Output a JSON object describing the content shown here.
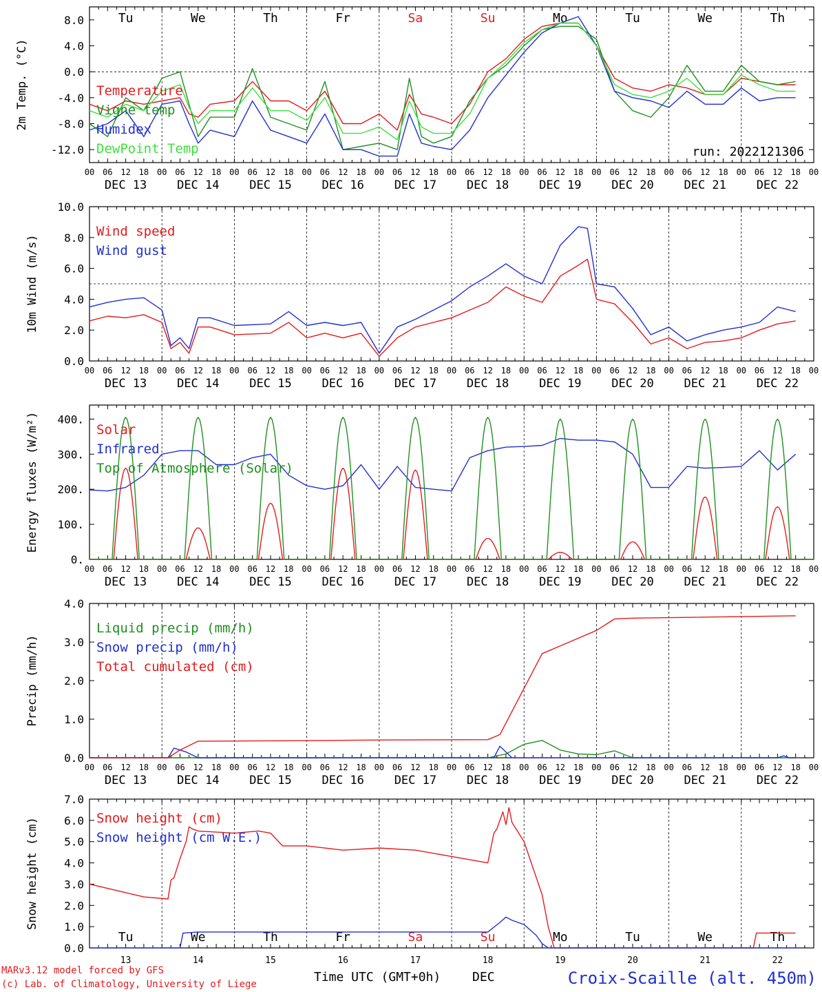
{
  "colors": {
    "red": "#e41a1c",
    "green": "#1f8f1f",
    "blue": "#1f2fd0",
    "light_green": "#3ee03e",
    "frame": "#000000",
    "footer_red": "#e41a1c",
    "footer_blue": "#1f2fd0"
  },
  "days": {
    "abbr": [
      "Tu",
      "We",
      "Th",
      "Fr",
      "Sa",
      "Su",
      "Mo",
      "Tu",
      "We",
      "Th"
    ],
    "abbr_colors": [
      "black",
      "black",
      "black",
      "black",
      "red",
      "red",
      "black",
      "black",
      "black",
      "black"
    ],
    "dates": [
      "DEC 13",
      "DEC 14",
      "DEC 15",
      "DEC 16",
      "DEC 17",
      "DEC 18",
      "DEC 19",
      "DEC 20",
      "DEC 21",
      "DEC 22"
    ],
    "hour_ticks": [
      "00",
      "06",
      "12",
      "18"
    ],
    "last_tick": "00",
    "day_numbers": [
      "13",
      "14",
      "15",
      "16",
      "17",
      "18",
      "19",
      "20",
      "21",
      "22"
    ]
  },
  "footer": {
    "model": "MARv3.12 model forced by GFS",
    "copyright": "(c) Lab. of Climatology, University of Liege",
    "xlabel_time": "Time UTC (GMT+0h)",
    "xlabel_month": "DEC",
    "station": "Croix-Scaille (alt. 450m)"
  },
  "chart_data": [
    {
      "type": "line",
      "ylabel": "2m Temp. (°C)",
      "ylim": [
        -14,
        10
      ],
      "yticks": [
        "8.0",
        "4.0",
        "0.0",
        "-4.0",
        "-8.0",
        "-12.0"
      ],
      "ytick_values": [
        8,
        4,
        0,
        -4,
        -8,
        -12
      ],
      "reference_line": 0,
      "annotation": "run: 2022121306",
      "x_unit": "hours since DEC 13 00 UTC",
      "series": [
        {
          "name": "Temperature",
          "color": "red",
          "x": [
            0,
            6,
            12,
            18,
            24,
            30,
            33,
            36,
            40,
            48,
            54,
            60,
            66,
            72,
            78,
            84,
            90,
            96,
            102,
            106,
            110,
            114,
            120,
            126,
            132,
            138,
            144,
            150,
            156,
            162,
            168,
            174,
            180,
            186,
            192,
            198,
            204,
            210,
            216,
            222,
            228,
            234
          ],
          "y": [
            -5,
            -6,
            -4.5,
            -5,
            -4.5,
            -4,
            -6.5,
            -7,
            -5,
            -4.5,
            -1.5,
            -4.5,
            -4.5,
            -6,
            -3,
            -8,
            -8,
            -6.5,
            -9,
            -3.5,
            -6.5,
            -7,
            -8,
            -5,
            0,
            2,
            5,
            7,
            7.5,
            7.5,
            4,
            -1,
            -2.5,
            -3,
            -2,
            -2.5,
            -3.5,
            -3.5,
            -1,
            -1.5,
            -2,
            -2
          ]
        },
        {
          "name": "Vigne temp",
          "color": "green",
          "x": [
            0,
            6,
            12,
            18,
            24,
            30,
            33,
            36,
            40,
            48,
            54,
            60,
            66,
            72,
            78,
            84,
            90,
            96,
            102,
            106,
            110,
            114,
            120,
            126,
            132,
            138,
            144,
            150,
            156,
            162,
            168,
            174,
            180,
            186,
            192,
            198,
            204,
            210,
            216,
            222,
            228,
            234
          ],
          "y": [
            -8,
            -10,
            -4,
            -6,
            -1,
            0,
            -5,
            -10,
            -7,
            -7,
            0.5,
            -7,
            -8,
            -9,
            -1.5,
            -12,
            -11.5,
            -11,
            -12,
            -1,
            -10,
            -11,
            -10,
            -4.5,
            -1,
            1,
            4,
            6.5,
            7,
            7,
            5,
            -3,
            -6,
            -7,
            -4,
            1,
            -3,
            -3,
            1,
            -1.5,
            -2,
            -1.5
          ]
        },
        {
          "name": "Humidex",
          "color": "blue",
          "x": [
            0,
            6,
            12,
            18,
            24,
            30,
            33,
            36,
            40,
            48,
            54,
            60,
            66,
            72,
            78,
            84,
            90,
            96,
            102,
            106,
            110,
            114,
            120,
            126,
            132,
            138,
            144,
            150,
            156,
            162,
            168,
            174,
            180,
            186,
            192,
            198,
            204,
            210,
            216,
            222,
            228,
            234
          ],
          "y": [
            -9,
            -8,
            -6,
            -10,
            -5,
            -4.5,
            -8,
            -11,
            -9,
            -10,
            -4.5,
            -9,
            -10,
            -11,
            -6.5,
            -12,
            -12,
            -13,
            -13,
            -6.5,
            -11,
            -11.5,
            -12,
            -9,
            -4,
            -0.5,
            3,
            6,
            7.5,
            8.5,
            4,
            -3,
            -4,
            -4.5,
            -5.5,
            -3,
            -5,
            -5,
            -2.5,
            -4.5,
            -4,
            -4
          ]
        },
        {
          "name": "DewPoint Temp",
          "color": "light_green",
          "x": [
            0,
            6,
            12,
            18,
            24,
            30,
            33,
            36,
            40,
            48,
            54,
            60,
            66,
            72,
            78,
            84,
            90,
            96,
            102,
            106,
            110,
            114,
            120,
            126,
            132,
            138,
            144,
            150,
            156,
            162,
            168,
            174,
            180,
            186,
            192,
            198,
            204,
            210,
            216,
            222,
            228,
            234
          ],
          "y": [
            -6,
            -7,
            -5,
            -6,
            -3,
            -2,
            -5.5,
            -8,
            -6,
            -6,
            -2.5,
            -6,
            -6,
            -7.5,
            -4,
            -9.5,
            -9.5,
            -8.5,
            -10.5,
            -4.5,
            -8.5,
            -9.5,
            -9.5,
            -6.5,
            -1,
            1.5,
            4.5,
            6.5,
            7.5,
            7.5,
            4,
            -2,
            -3.5,
            -4,
            -3,
            -1,
            -3.5,
            -3.5,
            -0.5,
            -2,
            -3,
            -3
          ]
        }
      ]
    },
    {
      "type": "line",
      "ylabel": "10m Wind (m/s)",
      "ylim": [
        0,
        10
      ],
      "yticks": [
        "10.0",
        "8.0",
        "6.0",
        "4.0",
        "2.0",
        "0.0"
      ],
      "ytick_values": [
        10,
        8,
        6,
        4,
        2,
        0
      ],
      "reference_line": 5,
      "x_unit": "hours since DEC 13 00 UTC",
      "series": [
        {
          "name": "Wind speed",
          "color": "red",
          "x": [
            0,
            6,
            12,
            18,
            24,
            27,
            30,
            33,
            36,
            40,
            48,
            60,
            66,
            72,
            78,
            84,
            90,
            96,
            102,
            108,
            114,
            120,
            126,
            132,
            138,
            144,
            150,
            156,
            162,
            165,
            168,
            174,
            180,
            186,
            192,
            198,
            204,
            210,
            216,
            222,
            228,
            234
          ],
          "y": [
            2.6,
            2.9,
            2.8,
            3,
            2.5,
            0.8,
            1.2,
            0.5,
            2.2,
            2.2,
            1.7,
            1.8,
            2.5,
            1.5,
            1.8,
            1.5,
            1.8,
            0.3,
            1.5,
            2.2,
            2.5,
            2.8,
            3.3,
            3.8,
            4.8,
            4.2,
            3.8,
            5.5,
            6.2,
            6.6,
            4,
            3.7,
            2.5,
            1.1,
            1.5,
            0.8,
            1.2,
            1.3,
            1.5,
            2,
            2.4,
            2.6
          ]
        },
        {
          "name": "Wind gust",
          "color": "blue",
          "x": [
            0,
            6,
            12,
            18,
            24,
            27,
            30,
            33,
            36,
            40,
            48,
            60,
            66,
            72,
            78,
            84,
            90,
            96,
            102,
            108,
            114,
            120,
            126,
            132,
            138,
            144,
            150,
            156,
            162,
            165,
            168,
            174,
            180,
            186,
            192,
            198,
            204,
            210,
            216,
            222,
            228,
            234
          ],
          "y": [
            3.5,
            3.8,
            4,
            4.1,
            3.3,
            1,
            1.5,
            0.8,
            2.8,
            2.8,
            2.3,
            2.4,
            3.2,
            2.3,
            2.5,
            2.3,
            2.5,
            0.5,
            2.2,
            2.7,
            3.3,
            3.9,
            4.8,
            5.5,
            6.3,
            5.5,
            5,
            7.5,
            8.7,
            8.6,
            5,
            4.8,
            3.4,
            1.7,
            2.2,
            1.3,
            1.7,
            2,
            2.2,
            2.5,
            3.5,
            3.2
          ]
        }
      ]
    },
    {
      "type": "line",
      "ylabel": "Energy fluxes (W/m²)",
      "ylim": [
        0,
        440
      ],
      "yticks": [
        "400.",
        "300.",
        "200.",
        "100.",
        "0."
      ],
      "ytick_values": [
        400,
        300,
        200,
        100,
        0
      ],
      "x_unit": "hours since DEC 13 00 UTC",
      "series": [
        {
          "name": "Solar",
          "color": "red",
          "daily_peak": [
            260,
            90,
            160,
            260,
            255,
            60,
            20,
            50,
            178,
            150
          ]
        },
        {
          "name": "Infrared",
          "color": "blue",
          "x": [
            0,
            6,
            12,
            18,
            24,
            30,
            36,
            42,
            48,
            54,
            60,
            66,
            72,
            78,
            84,
            90,
            96,
            102,
            108,
            114,
            120,
            126,
            132,
            138,
            144,
            150,
            156,
            162,
            168,
            174,
            180,
            186,
            192,
            198,
            204,
            210,
            216,
            222,
            228,
            234
          ],
          "y": [
            198,
            195,
            205,
            240,
            300,
            310,
            310,
            270,
            270,
            290,
            300,
            240,
            210,
            200,
            210,
            270,
            200,
            265,
            205,
            200,
            195,
            290,
            310,
            320,
            322,
            325,
            345,
            340,
            340,
            335,
            300,
            205,
            205,
            265,
            260,
            262,
            265,
            310,
            255,
            300
          ]
        },
        {
          "name": "Top of Atmosphere (Solar)",
          "color": "green",
          "daily_peak": [
            405,
            405,
            405,
            405,
            405,
            405,
            400,
            400,
            400,
            400
          ]
        }
      ]
    },
    {
      "type": "line",
      "ylabel": "Precip (mm/h)",
      "ylim": [
        0,
        4
      ],
      "yticks": [
        "4.0",
        "3.0",
        "2.0",
        "1.0",
        "0.0"
      ],
      "ytick_values": [
        4,
        3,
        2,
        1,
        0
      ],
      "x_unit": "hours since DEC 13 00 UTC",
      "series": [
        {
          "name": "Liquid precip (mm/h)",
          "color": "green",
          "x": [
            0,
            132,
            138,
            144,
            150,
            156,
            162,
            168,
            174,
            180,
            234
          ],
          "y": [
            0,
            0,
            0.1,
            0.35,
            0.45,
            0.2,
            0.1,
            0.08,
            0.18,
            0,
            0
          ]
        },
        {
          "name": "Snow precip (mm/h)",
          "color": "blue",
          "x": [
            0,
            26,
            28,
            32,
            36,
            134,
            136,
            140,
            144,
            228,
            230,
            232,
            234
          ],
          "y": [
            0,
            0,
            0.25,
            0.15,
            0,
            0,
            0.3,
            0,
            0,
            0,
            0.05,
            0,
            0
          ]
        },
        {
          "name": "Total cumulated (cm)",
          "color": "red",
          "x": [
            0,
            26,
            30,
            36,
            60,
            96,
            132,
            136,
            142,
            150,
            156,
            162,
            168,
            174,
            180,
            234
          ],
          "y": [
            0,
            0,
            0.2,
            0.43,
            0.44,
            0.46,
            0.47,
            0.6,
            1.5,
            2.7,
            2.9,
            3.1,
            3.3,
            3.6,
            3.62,
            3.68
          ]
        }
      ]
    },
    {
      "type": "line",
      "ylabel": "Snow height (cm)",
      "ylim": [
        0,
        7
      ],
      "yticks": [
        "7.0",
        "6.0",
        "5.0",
        "4.0",
        "3.0",
        "2.0",
        "1.0",
        "0.0"
      ],
      "ytick_values": [
        7,
        6,
        5,
        4,
        3,
        2,
        1,
        0
      ],
      "x_unit": "hours since DEC 13 00 UTC",
      "series": [
        {
          "name": "Snow height (cm)",
          "color": "red",
          "x": [
            0,
            6,
            12,
            18,
            26,
            27,
            28,
            30,
            32,
            33,
            34,
            36,
            48,
            56,
            60,
            64,
            72,
            84,
            96,
            108,
            120,
            132,
            134,
            135,
            136,
            137,
            138,
            139,
            140,
            144,
            150,
            152,
            154,
            220,
            221,
            228,
            229,
            234
          ],
          "y": [
            3,
            2.8,
            2.6,
            2.4,
            2.3,
            3.2,
            3.3,
            4.2,
            5,
            5.7,
            5.6,
            5.5,
            5.4,
            5.5,
            5.4,
            4.8,
            4.8,
            4.6,
            4.7,
            4.6,
            4.3,
            4,
            5.4,
            5.6,
            6,
            6.4,
            5.8,
            6.6,
            5.9,
            5,
            2.5,
            1,
            0,
            0,
            0.7,
            0.7,
            0.7,
            0.7
          ]
        },
        {
          "name": "Snow height (cm W.E.)",
          "color": "blue",
          "x": [
            0,
            30,
            31,
            36,
            60,
            96,
            132,
            136,
            138,
            140,
            144,
            148,
            150,
            152,
            154,
            234
          ],
          "y": [
            0,
            0,
            0.7,
            0.75,
            0.75,
            0.75,
            0.75,
            1.2,
            1.45,
            1.3,
            1.1,
            0.6,
            0.2,
            0,
            0,
            0
          ]
        }
      ]
    }
  ]
}
